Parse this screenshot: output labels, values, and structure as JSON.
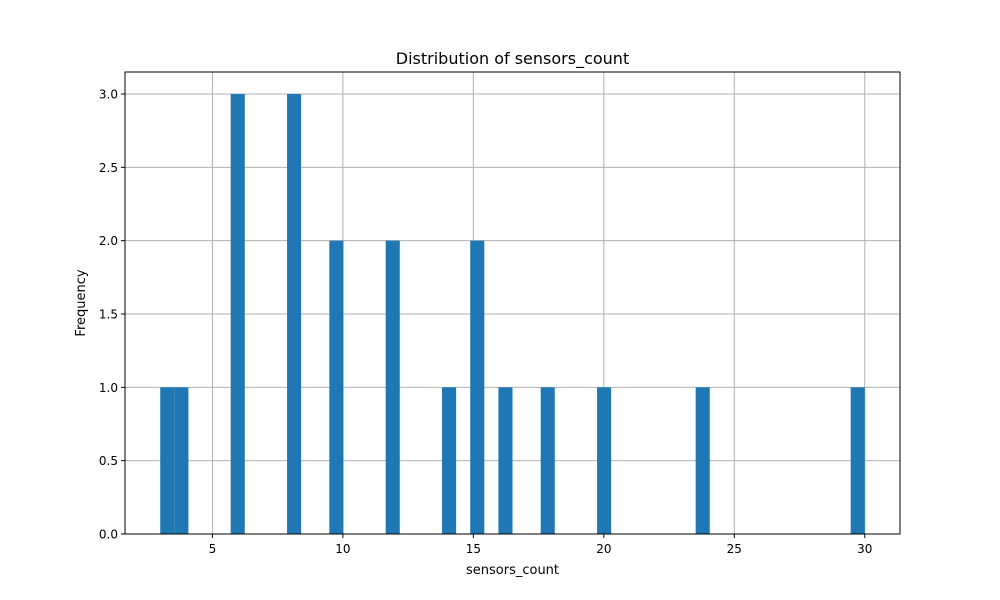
{
  "chart_data": {
    "type": "bar",
    "title": "Distribution of sensors_count",
    "xlabel": "sensors_count",
    "ylabel": "Frequency",
    "xlim": [
      1.65,
      31.35
    ],
    "ylim": [
      0,
      3.15
    ],
    "xticks": [
      5,
      10,
      15,
      20,
      25,
      30
    ],
    "xtick_labels": [
      "5",
      "10",
      "15",
      "20",
      "25",
      "30"
    ],
    "yticks": [
      0.0,
      0.5,
      1.0,
      1.5,
      2.0,
      2.5,
      3.0
    ],
    "ytick_labels": [
      "0.0",
      "0.5",
      "1.0",
      "1.5",
      "2.0",
      "2.5",
      "3.0"
    ],
    "grid": true,
    "bar_color": "#1f77b4",
    "bins": [
      {
        "x0": 3.0,
        "x1": 3.54,
        "count": 1
      },
      {
        "x0": 3.54,
        "x1": 4.08,
        "count": 1
      },
      {
        "x0": 5.7,
        "x1": 6.24,
        "count": 3
      },
      {
        "x0": 7.86,
        "x1": 8.4,
        "count": 3
      },
      {
        "x0": 9.48,
        "x1": 10.02,
        "count": 2
      },
      {
        "x0": 11.64,
        "x1": 12.18,
        "count": 2
      },
      {
        "x0": 13.8,
        "x1": 14.34,
        "count": 1
      },
      {
        "x0": 14.88,
        "x1": 15.42,
        "count": 2
      },
      {
        "x0": 15.96,
        "x1": 16.5,
        "count": 1
      },
      {
        "x0": 17.58,
        "x1": 18.12,
        "count": 1
      },
      {
        "x0": 19.74,
        "x1": 20.28,
        "count": 1
      },
      {
        "x0": 23.52,
        "x1": 24.06,
        "count": 1
      },
      {
        "x0": 29.46,
        "x1": 30.0,
        "count": 1
      }
    ]
  }
}
